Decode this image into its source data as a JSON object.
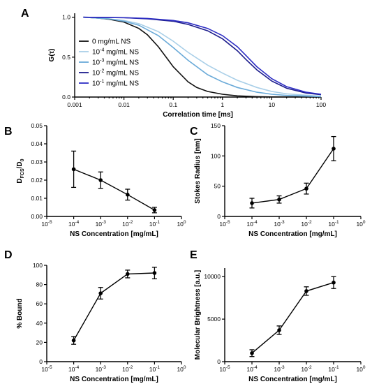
{
  "chart_data": [
    {
      "panel": "A",
      "type": "line",
      "xscale": "log",
      "xlim": [
        0.001,
        100
      ],
      "ylim": [
        0,
        1.05
      ],
      "xticks": [
        0.001,
        0.01,
        0.1,
        1,
        10,
        100
      ],
      "xticklabels": [
        "0.001",
        "0.01",
        "0.1",
        "1",
        "10",
        "100"
      ],
      "yticks": [
        0,
        0.5,
        1
      ],
      "yticklabels": [
        "0.0",
        "0.5",
        "1.0"
      ],
      "xlabel": "Correlation time [ms]",
      "ylabel": "G(τ)",
      "legend_position": "left-middle",
      "series": [
        {
          "name": "0 mg/mL NS",
          "legend": [
            "0 mg/mL NS"
          ],
          "color": "#111111",
          "x": [
            0.0015,
            0.003,
            0.005,
            0.01,
            0.02,
            0.03,
            0.05,
            0.08,
            0.1,
            0.2,
            0.3,
            0.5,
            1,
            2,
            5,
            10,
            100
          ],
          "y": [
            1.0,
            0.99,
            0.975,
            0.94,
            0.86,
            0.78,
            0.63,
            0.46,
            0.38,
            0.19,
            0.12,
            0.07,
            0.035,
            0.015,
            0.005,
            0.002,
            0.0
          ]
        },
        {
          "name": "10-4 mg/mL NS",
          "legend": [
            "10",
            "-4",
            " mg/mL NS"
          ],
          "color": "#a9cfe8",
          "x": [
            0.0015,
            0.003,
            0.005,
            0.01,
            0.02,
            0.05,
            0.1,
            0.2,
            0.5,
            1,
            2,
            5,
            10,
            20,
            100
          ],
          "y": [
            1.0,
            0.99,
            0.98,
            0.96,
            0.92,
            0.82,
            0.7,
            0.56,
            0.4,
            0.3,
            0.21,
            0.12,
            0.07,
            0.04,
            0.01
          ]
        },
        {
          "name": "10-3 mg/mL NS",
          "legend": [
            "10",
            "-3",
            " mg/mL NS"
          ],
          "color": "#6aaad8",
          "x": [
            0.0015,
            0.003,
            0.005,
            0.01,
            0.02,
            0.05,
            0.1,
            0.2,
            0.5,
            1,
            2,
            5,
            10,
            20,
            100
          ],
          "y": [
            1.0,
            0.99,
            0.98,
            0.95,
            0.9,
            0.77,
            0.62,
            0.46,
            0.28,
            0.19,
            0.12,
            0.06,
            0.035,
            0.02,
            0.005
          ]
        },
        {
          "name": "10-2 mg/mL NS",
          "legend": [
            "10",
            "-2",
            " mg/mL NS"
          ],
          "color": "#1c1c8c",
          "x": [
            0.0015,
            0.01,
            0.03,
            0.1,
            0.2,
            0.5,
            1,
            2,
            3,
            5,
            10,
            20,
            50,
            100
          ],
          "y": [
            1.0,
            0.995,
            0.98,
            0.95,
            0.91,
            0.83,
            0.73,
            0.58,
            0.47,
            0.34,
            0.2,
            0.11,
            0.05,
            0.03
          ]
        },
        {
          "name": "10-1 mg/mL NS",
          "legend": [
            "10",
            "-1",
            " mg/mL NS"
          ],
          "color": "#2e2ec4",
          "x": [
            0.0015,
            0.01,
            0.03,
            0.1,
            0.2,
            0.5,
            1,
            2,
            3,
            5,
            10,
            20,
            50,
            100
          ],
          "y": [
            1.0,
            0.995,
            0.985,
            0.96,
            0.93,
            0.86,
            0.77,
            0.63,
            0.52,
            0.38,
            0.23,
            0.13,
            0.06,
            0.035
          ]
        }
      ]
    },
    {
      "panel": "B",
      "type": "line",
      "xscale": "log",
      "xlim": [
        1e-05,
        1
      ],
      "ylim": [
        0,
        0.05
      ],
      "xticks": [
        1e-05,
        0.0001,
        0.001,
        0.01,
        0.1,
        1
      ],
      "xticklabels": [
        [
          "10",
          "-5"
        ],
        [
          "10",
          "-4"
        ],
        [
          "10",
          "-3"
        ],
        [
          "10",
          "-2"
        ],
        [
          "10",
          "-1"
        ],
        [
          "10",
          "0"
        ]
      ],
      "yticks": [
        0,
        0.01,
        0.02,
        0.03,
        0.04,
        0.05
      ],
      "yticklabels": [
        "0.00",
        "0.01",
        "0.02",
        "0.03",
        "0.04",
        "0.05"
      ],
      "xlabel": "NS Concentration [mg/mL]",
      "ylabel": [
        "D",
        "FCS",
        "/D",
        "0"
      ],
      "x": [
        0.0001,
        0.001,
        0.01,
        0.1
      ],
      "y": [
        0.026,
        0.02,
        0.012,
        0.0035
      ],
      "error": [
        0.01,
        0.0045,
        0.003,
        0.0015
      ]
    },
    {
      "panel": "C",
      "type": "line",
      "xscale": "log",
      "xlim": [
        1e-05,
        1
      ],
      "ylim": [
        0,
        150
      ],
      "xticks": [
        1e-05,
        0.0001,
        0.001,
        0.01,
        0.1,
        1
      ],
      "xticklabels": [
        [
          "10",
          "-5"
        ],
        [
          "10",
          "-4"
        ],
        [
          "10",
          "-3"
        ],
        [
          "10",
          "-2"
        ],
        [
          "10",
          "-1"
        ],
        [
          "10",
          "0"
        ]
      ],
      "yticks": [
        0,
        50,
        100,
        150
      ],
      "yticklabels": [
        "0",
        "50",
        "100",
        "150"
      ],
      "xlabel": "NS Concentration [mg/mL]",
      "ylabel": "Stokes  Radius [nm]",
      "x": [
        0.0001,
        0.001,
        0.01,
        0.1
      ],
      "y": [
        22,
        28,
        46,
        112
      ],
      "error": [
        8,
        6,
        9,
        20
      ]
    },
    {
      "panel": "D",
      "type": "line",
      "xscale": "log",
      "xlim": [
        1e-05,
        1
      ],
      "ylim": [
        0,
        100
      ],
      "xticks": [
        1e-05,
        0.0001,
        0.001,
        0.01,
        0.1,
        1
      ],
      "xticklabels": [
        [
          "10",
          "-5"
        ],
        [
          "10",
          "-4"
        ],
        [
          "10",
          "-3"
        ],
        [
          "10",
          "-2"
        ],
        [
          "10",
          "-1"
        ],
        [
          "10",
          "0"
        ]
      ],
      "yticks": [
        0,
        20,
        40,
        60,
        80,
        100
      ],
      "yticklabels": [
        "0",
        "20",
        "40",
        "60",
        "80",
        "100"
      ],
      "xlabel": "NS Concentration [mg/mL]",
      "ylabel": "% Bound",
      "x": [
        0.0001,
        0.001,
        0.01,
        0.1
      ],
      "y": [
        22,
        71,
        91,
        92
      ],
      "error": [
        4,
        6,
        4,
        6
      ]
    },
    {
      "panel": "E",
      "type": "line",
      "xscale": "log",
      "xlim": [
        1e-05,
        1
      ],
      "ylim": [
        0,
        11000
      ],
      "xticks": [
        1e-05,
        0.0001,
        0.001,
        0.01,
        0.1,
        1
      ],
      "xticklabels": [
        [
          "10",
          "-5"
        ],
        [
          "10",
          "-4"
        ],
        [
          "10",
          "-3"
        ],
        [
          "10",
          "-2"
        ],
        [
          "10",
          "-1"
        ],
        [
          "10",
          "0"
        ]
      ],
      "yticks": [
        0,
        5000,
        10000
      ],
      "yticklabels": [
        "0",
        "5000",
        "10000"
      ],
      "xlabel": "NS Concentration [mg/mL]",
      "ylabel": "Molecular Brightness [a.u.]",
      "x": [
        0.0001,
        0.001,
        0.01,
        0.1
      ],
      "y": [
        1000,
        3700,
        8300,
        9300
      ],
      "error": [
        400,
        500,
        500,
        700
      ]
    }
  ]
}
